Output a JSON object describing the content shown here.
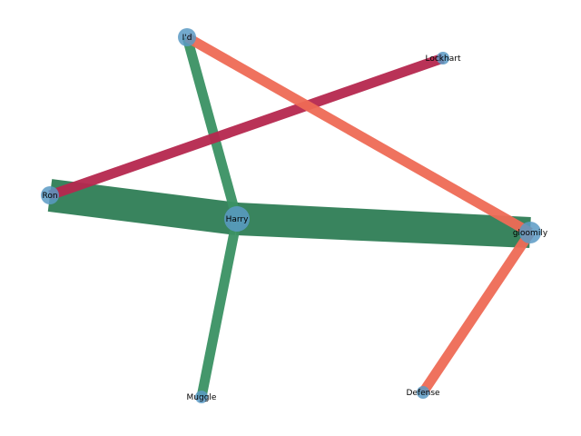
{
  "graph": {
    "nodes": [
      {
        "id": "harry",
        "label": "Harry",
        "size": "large"
      },
      {
        "id": "gloomily",
        "label": "gloomily",
        "size": "medium"
      },
      {
        "id": "id",
        "label": "I'd",
        "size": "small"
      },
      {
        "id": "ron",
        "label": "Ron",
        "size": "small"
      },
      {
        "id": "lockhart",
        "label": "Lockhart",
        "size": "tiny"
      },
      {
        "id": "muggle",
        "label": "Muggle",
        "size": "tiny"
      },
      {
        "id": "defense",
        "label": "Defense",
        "size": "tiny"
      }
    ],
    "edges": [
      {
        "source": "ron",
        "target": "harry",
        "weight": "heavy",
        "color": "#2e7d55"
      },
      {
        "source": "harry",
        "target": "gloomily",
        "weight": "heavy",
        "color": "#2e7d55"
      },
      {
        "source": "id",
        "target": "harry",
        "weight": "medium",
        "color": "#3a9163"
      },
      {
        "source": "harry",
        "target": "muggle",
        "weight": "medium",
        "color": "#3a9163"
      },
      {
        "source": "ron",
        "target": "lockhart",
        "weight": "medium",
        "color": "#b5274e"
      },
      {
        "source": "id",
        "target": "gloomily",
        "weight": "medium",
        "color": "#ee6a55"
      },
      {
        "source": "gloomily",
        "target": "defense",
        "weight": "medium",
        "color": "#ee6a55"
      }
    ],
    "node_color": "#5b9ac4"
  }
}
